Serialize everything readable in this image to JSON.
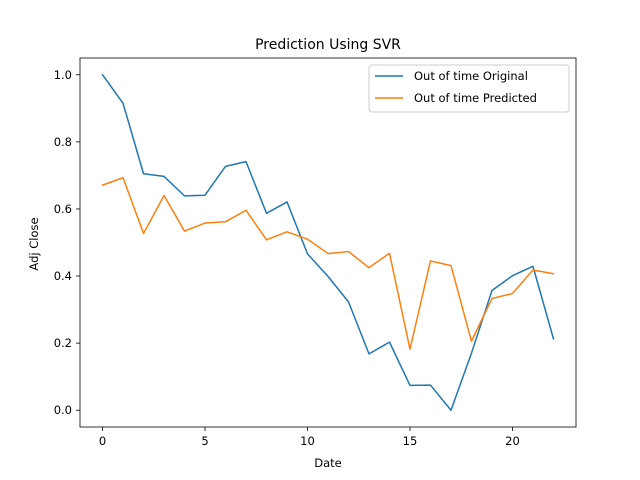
{
  "chart_data": {
    "type": "line",
    "title": "Prediction Using SVR",
    "xlabel": "Date",
    "ylabel": "Adj Close",
    "xlim": [
      -1.1,
      23.1
    ],
    "ylim": [
      -0.05,
      1.05
    ],
    "xticks": [
      0,
      5,
      10,
      15,
      20
    ],
    "yticks": [
      0.0,
      0.2,
      0.4,
      0.6,
      0.8,
      1.0
    ],
    "xtick_labels": [
      "0",
      "5",
      "10",
      "15",
      "20"
    ],
    "ytick_labels": [
      "0.0",
      "0.2",
      "0.4",
      "0.6",
      "0.8",
      "1.0"
    ],
    "grid": false,
    "legend_position": "top-right",
    "x": [
      0,
      1,
      2,
      3,
      4,
      5,
      6,
      7,
      8,
      9,
      10,
      11,
      12,
      13,
      14,
      15,
      16,
      17,
      18,
      19,
      20,
      21,
      22
    ],
    "series": [
      {
        "name": "Out of time Original",
        "color": "#1f77b4",
        "values": [
          1.0,
          0.915,
          0.705,
          0.697,
          0.639,
          0.641,
          0.727,
          0.741,
          0.587,
          0.621,
          0.466,
          0.399,
          0.323,
          0.168,
          0.203,
          0.074,
          0.075,
          0.0,
          0.17,
          0.357,
          0.401,
          0.429,
          0.213
        ]
      },
      {
        "name": "Out of time Predicted",
        "color": "#ff7f0e",
        "values": [
          0.671,
          0.693,
          0.527,
          0.64,
          0.534,
          0.558,
          0.562,
          0.596,
          0.508,
          0.532,
          0.51,
          0.467,
          0.473,
          0.425,
          0.468,
          0.182,
          0.445,
          0.431,
          0.206,
          0.333,
          0.348,
          0.418,
          0.407
        ]
      }
    ]
  }
}
